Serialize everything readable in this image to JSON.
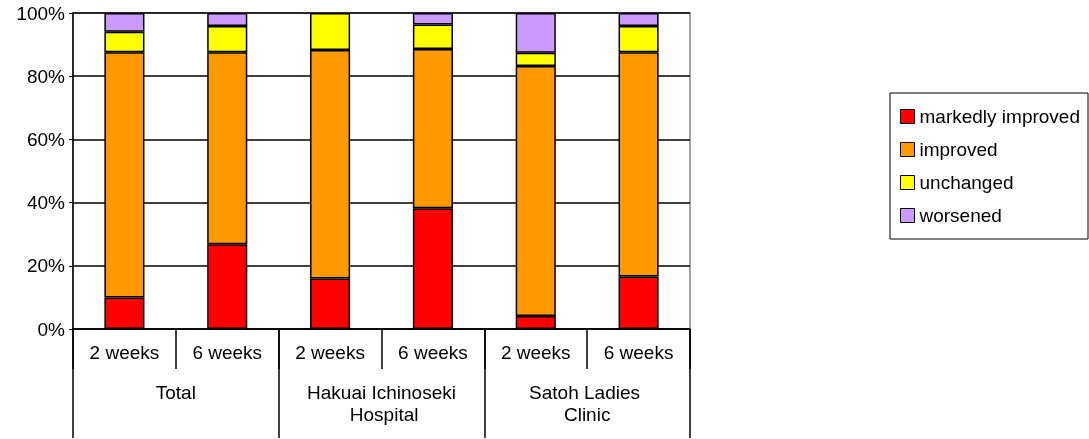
{
  "chart_data": {
    "type": "bar",
    "stacked": true,
    "categories": [
      "2 weeks",
      "6 weeks",
      "2 weeks",
      "6 weeks",
      "2 weeks",
      "6 weeks"
    ],
    "annotations": [
      "Total",
      "Hakuai Ichinoseki Hospital",
      "Satoh Ladies Clinic"
    ],
    "series": [
      {
        "name": "markedly improved",
        "color": "#ff0000",
        "values": [
          10.0,
          26.8,
          16.0,
          38.2,
          4.1,
          16.6
        ]
      },
      {
        "name": "improved",
        "color": "#ff9900",
        "values": [
          77.6,
          60.8,
          72.3,
          50.4,
          79.1,
          71.0
        ]
      },
      {
        "name": "unchanged",
        "color": "#ffff00",
        "values": [
          6.5,
          8.3,
          11.7,
          7.8,
          4.2,
          8.3
        ]
      },
      {
        "name": "worsened",
        "color": "#cc99ff",
        "values": [
          5.9,
          4.1,
          0,
          3.6,
          12.6,
          4.1
        ]
      }
    ],
    "ylim": [
      0,
      100
    ],
    "yticks": [
      {
        "value": 0,
        "label": "0%"
      },
      {
        "value": 20,
        "label": "20%"
      },
      {
        "value": 40,
        "label": "40%"
      },
      {
        "value": 60,
        "label": "60%"
      },
      {
        "value": 80,
        "label": "80%"
      },
      {
        "value": 100,
        "label": "100%"
      }
    ],
    "grid": "y",
    "legend": "right"
  }
}
